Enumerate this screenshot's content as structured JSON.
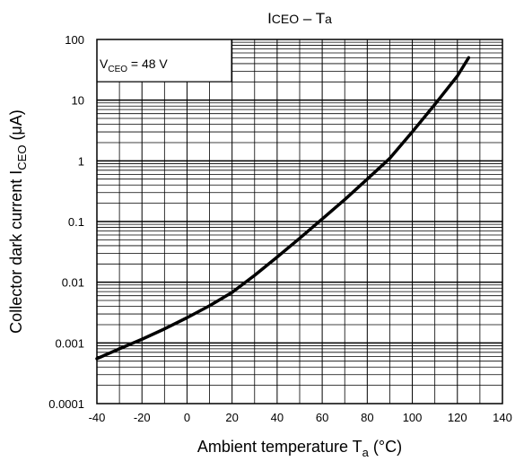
{
  "chart_data": {
    "type": "line",
    "title_main": "I",
    "title_sub": "CEO",
    "title_mid": " – T",
    "title_sub2": "a",
    "xlabel_main": "Ambient temperature  T",
    "xlabel_sub": "a",
    "xlabel_unit": "  (°C)",
    "ylabel_main": "Collector dark current  I",
    "ylabel_sub": "CEO",
    "ylabel_unit": "  (μA)",
    "annotation_main": "V",
    "annotation_sub": "CEO",
    "annotation_rest": " = 48 V",
    "x_ticks": [
      "-40",
      "-20",
      "0",
      "20",
      "40",
      "60",
      "80",
      "100",
      "120",
      "140"
    ],
    "y_ticks": [
      "0.0001",
      "0.001",
      "0.01",
      "0.1",
      "1",
      "10",
      "100"
    ],
    "xlim": [
      -40,
      140
    ],
    "ylim": [
      0.0001,
      100
    ],
    "yscale": "log",
    "grid": true,
    "series": [
      {
        "x": [
          -40,
          -30,
          -20,
          -10,
          0,
          10,
          20,
          30,
          40,
          50,
          60,
          70,
          80,
          90,
          100,
          110,
          120,
          125
        ],
        "y": [
          0.00055,
          0.0008,
          0.00115,
          0.0017,
          0.0026,
          0.0041,
          0.0068,
          0.013,
          0.026,
          0.053,
          0.11,
          0.23,
          0.5,
          1.1,
          3.0,
          8.5,
          25,
          50
        ]
      }
    ],
    "line_color": "#000000",
    "grid_color": "#000000"
  }
}
